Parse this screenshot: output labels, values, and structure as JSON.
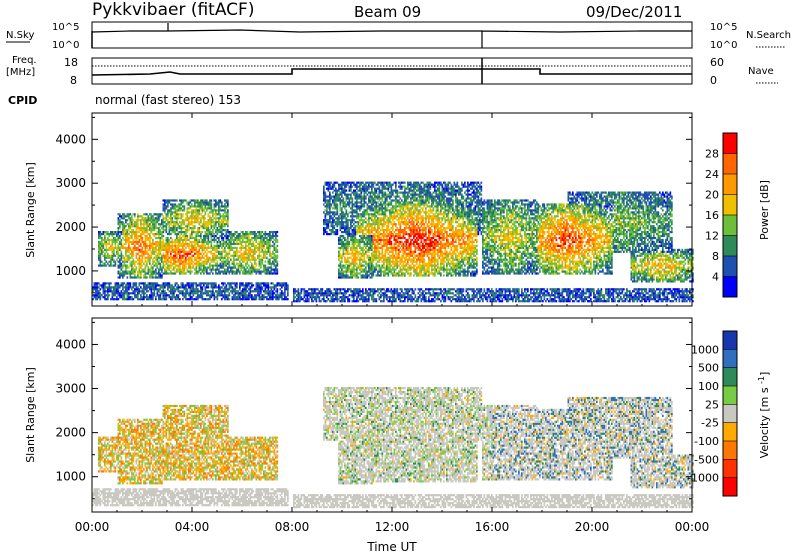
{
  "header": {
    "station": "Pykkvibaer (fitACF)",
    "beam": "Beam 09",
    "date": "09/Dec/2011"
  },
  "noise_panel": {
    "left_label": "N.Sky",
    "left_ticks": [
      "10^5",
      "10^0"
    ],
    "right_label": "N.Search",
    "right_ticks": [
      "10^5",
      "10^0"
    ]
  },
  "freq_panel": {
    "left_label_line1": "Freq.",
    "left_label_line2": "[MHz]",
    "left_ticks": [
      "18",
      "8"
    ],
    "right_label": "Nave",
    "right_ticks": [
      "60",
      "0"
    ]
  },
  "cpid": {
    "label": "CPID",
    "text": "normal (fast stereo) 153"
  },
  "colors": {
    "power": [
      "#0000ff",
      "#1f4fb0",
      "#2e8b57",
      "#6bbf3a",
      "#f0c000",
      "#ff9900",
      "#ff6600",
      "#ff0000"
    ],
    "velocity": [
      "#1836b0",
      "#2f6fc0",
      "#2e8b57",
      "#77cc44",
      "#c8c8c0",
      "#ffaa00",
      "#ff7700",
      "#ff3300",
      "#ff0000"
    ]
  },
  "chart_data": [
    {
      "type": "heatmap",
      "title": "",
      "xlabel": "Time UT",
      "ylabel": "Slant Range [km]",
      "xlim": [
        "00:00",
        "24:00"
      ],
      "x_ticks": [
        "00:00",
        "04:00",
        "08:00",
        "12:00",
        "16:00",
        "20:00",
        "00:00"
      ],
      "ylim": [
        200,
        4600
      ],
      "y_ticks": [
        "1000",
        "2000",
        "3000",
        "4000"
      ],
      "colorbar": {
        "label": "Power [dB]",
        "ticks": [
          "4",
          "8",
          "12",
          "16",
          "20",
          "24",
          "28"
        ]
      }
    },
    {
      "type": "heatmap",
      "title": "",
      "xlabel": "Time UT",
      "ylabel": "Slant Range [km]",
      "xlim": [
        "00:00",
        "24:00"
      ],
      "x_ticks": [
        "00:00",
        "04:00",
        "08:00",
        "12:00",
        "16:00",
        "20:00",
        "00:00"
      ],
      "ylim": [
        200,
        4600
      ],
      "y_ticks": [
        "1000",
        "2000",
        "3000",
        "4000"
      ],
      "colorbar": {
        "label": "Velocity [m s^-1]",
        "ticks": [
          "1000",
          "500",
          "100",
          "25",
          "-25",
          "-100",
          "-500",
          "-1000"
        ]
      }
    }
  ]
}
